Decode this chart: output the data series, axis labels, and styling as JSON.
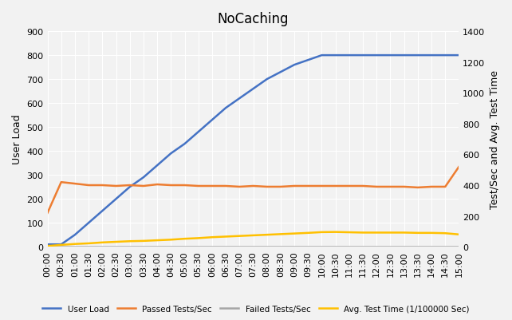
{
  "title": "NoCaching",
  "ylabel_left": "User Load",
  "ylabel_right": "Test/Sec and Avg. Test Time",
  "ylim_left": [
    0,
    900
  ],
  "ylim_right": [
    0,
    1400
  ],
  "yticks_left": [
    0,
    100,
    200,
    300,
    400,
    500,
    600,
    700,
    800,
    900
  ],
  "yticks_right": [
    0,
    200,
    400,
    600,
    800,
    1000,
    1200,
    1400
  ],
  "background_color": "#f2f2f2",
  "grid_color": "#ffffff",
  "time_labels": [
    "00:00",
    "00:30",
    "01:00",
    "01:30",
    "02:00",
    "02:30",
    "03:00",
    "03:30",
    "04:00",
    "04:30",
    "05:00",
    "05:30",
    "06:00",
    "06:30",
    "07:00",
    "07:30",
    "08:00",
    "08:30",
    "09:00",
    "09:30",
    "10:00",
    "10:30",
    "11:00",
    "11:30",
    "12:00",
    "12:30",
    "13:00",
    "13:30",
    "14:00",
    "14:30",
    "15:00"
  ],
  "user_load": [
    10,
    10,
    50,
    100,
    150,
    200,
    250,
    290,
    340,
    390,
    430,
    480,
    530,
    580,
    620,
    660,
    700,
    730,
    760,
    780,
    800,
    800,
    800,
    800,
    800,
    800,
    800,
    800,
    800,
    800,
    800
  ],
  "passed_tests": [
    220,
    420,
    410,
    400,
    400,
    395,
    400,
    395,
    405,
    400,
    400,
    395,
    395,
    395,
    390,
    395,
    390,
    390,
    395,
    395,
    395,
    395,
    395,
    395,
    390,
    390,
    390,
    385,
    390,
    390,
    520
  ],
  "failed_tests": [
    0,
    0,
    0,
    0,
    0,
    0,
    0,
    0,
    0,
    0,
    0,
    0,
    0,
    0,
    0,
    0,
    0,
    0,
    0,
    0,
    0,
    0,
    0,
    0,
    0,
    0,
    0,
    0,
    0,
    0,
    0
  ],
  "avg_test_time": [
    5,
    12,
    18,
    22,
    28,
    32,
    36,
    38,
    42,
    46,
    52,
    56,
    62,
    66,
    70,
    74,
    78,
    82,
    86,
    90,
    95,
    96,
    94,
    92,
    92,
    92,
    92,
    90,
    90,
    88,
    80
  ],
  "color_user_load": "#4472c4",
  "color_passed": "#ed7d31",
  "color_failed": "#a5a5a5",
  "color_avg_time": "#ffc000",
  "legend_labels": [
    "User Load",
    "Passed Tests/Sec",
    "Failed Tests/Sec",
    "Avg. Test Time (1/100000 Sec)"
  ]
}
